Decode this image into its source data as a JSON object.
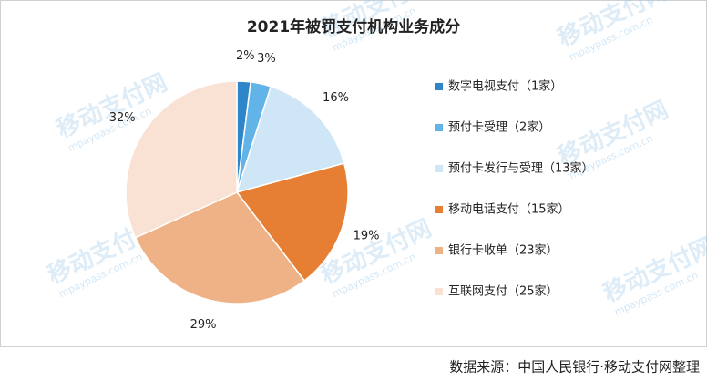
{
  "chart_data": {
    "type": "pie",
    "title": "2021年被罚支付机构业务成分",
    "categories": [
      "数字电视支付（1家）",
      "预付卡受理（2家）",
      "预付卡发行与受理（13家）",
      "移动电话支付（15家）",
      "银行卡收单（23家）",
      "互联网支付（25家）"
    ],
    "values": [
      2,
      3,
      16,
      19,
      29,
      32
    ],
    "value_labels": [
      "2%",
      "3%",
      "16%",
      "19%",
      "29%",
      "32%"
    ],
    "colors": [
      "#2e86c8",
      "#62b4e8",
      "#cfe6f7",
      "#e67e33",
      "#efb186",
      "#f9e2d4"
    ],
    "legend": "right",
    "source": "数据来源：中国人民银行·移动支付网整理",
    "watermark": {
      "name": "移动支付网",
      "url": "mpaypass.com.cn"
    }
  }
}
